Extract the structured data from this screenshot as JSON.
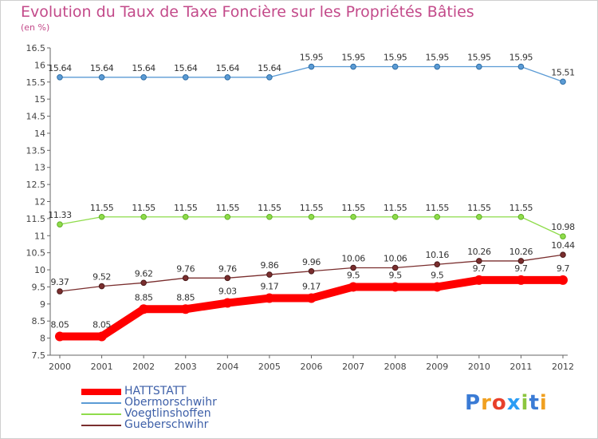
{
  "chart_data": {
    "type": "line",
    "title": "Evolution du Taux de Taxe Foncière sur les Propriétés Bâties",
    "ylabel": "(en %)",
    "x": [
      "2000",
      "2001",
      "2002",
      "2003",
      "2004",
      "2005",
      "2006",
      "2007",
      "2008",
      "2009",
      "2010",
      "2011",
      "2012"
    ],
    "ylim": [
      7.5,
      16.5
    ],
    "yticks": [
      "7.5",
      "8",
      "8.5",
      "9",
      "9.5",
      "10",
      "10.5",
      "11",
      "11.5",
      "12",
      "12.5",
      "13",
      "13.5",
      "14",
      "14.5",
      "15",
      "15.5",
      "16",
      "16.5"
    ],
    "series": [
      {
        "name": "HATTSTATT",
        "color": "#ff0000",
        "values": [
          8.05,
          8.05,
          8.85,
          8.85,
          9.03,
          9.17,
          9.17,
          9.5,
          9.5,
          9.5,
          9.7,
          9.7,
          9.7
        ],
        "labels": [
          "8.05",
          "8.05",
          "8.85",
          "8.85",
          "9.03",
          "9.17",
          "9.17",
          "9.5",
          "9.5",
          "9.5",
          "9.7",
          "9.7",
          "9.7"
        ]
      },
      {
        "name": "Obermorschwihr",
        "color": "#5b9bd5",
        "values": [
          15.64,
          15.64,
          15.64,
          15.64,
          15.64,
          15.64,
          15.95,
          15.95,
          15.95,
          15.95,
          15.95,
          15.95,
          15.51
        ],
        "labels": [
          "15.64",
          "15.64",
          "15.64",
          "15.64",
          "15.64",
          "15.64",
          "15.95",
          "15.95",
          "15.95",
          "15.95",
          "15.95",
          "15.95",
          "15.51"
        ]
      },
      {
        "name": "Voegtlinshoffen",
        "color": "#8fdc4b",
        "values": [
          11.33,
          11.55,
          11.55,
          11.55,
          11.55,
          11.55,
          11.55,
          11.55,
          11.55,
          11.55,
          11.55,
          11.55,
          10.98
        ],
        "labels": [
          "11.33",
          "11.55",
          "11.55",
          "11.55",
          "11.55",
          "11.55",
          "11.55",
          "11.55",
          "11.55",
          "11.55",
          "11.55",
          "11.55",
          "10.98"
        ]
      },
      {
        "name": "Gueberschwihr",
        "color": "#7a2e2e",
        "values": [
          9.37,
          9.52,
          9.62,
          9.76,
          9.76,
          9.86,
          9.96,
          10.06,
          10.06,
          10.16,
          10.26,
          10.26,
          10.44
        ],
        "labels": [
          "9.37",
          "9.52",
          "9.62",
          "9.76",
          "9.76",
          "9.86",
          "9.96",
          "10.06",
          "10.06",
          "10.16",
          "10.26",
          "10.26",
          "10.44"
        ]
      }
    ],
    "legend_position": "bottom-left",
    "grid": false
  },
  "logo": {
    "p": "P",
    "r": "r",
    "o": "o",
    "x": "x",
    "i1": "i",
    "t": "t",
    "i2": "i"
  },
  "colors": {
    "title": "#c34a8a",
    "legend_text": "#3d5fa8",
    "axis": "#555555"
  }
}
